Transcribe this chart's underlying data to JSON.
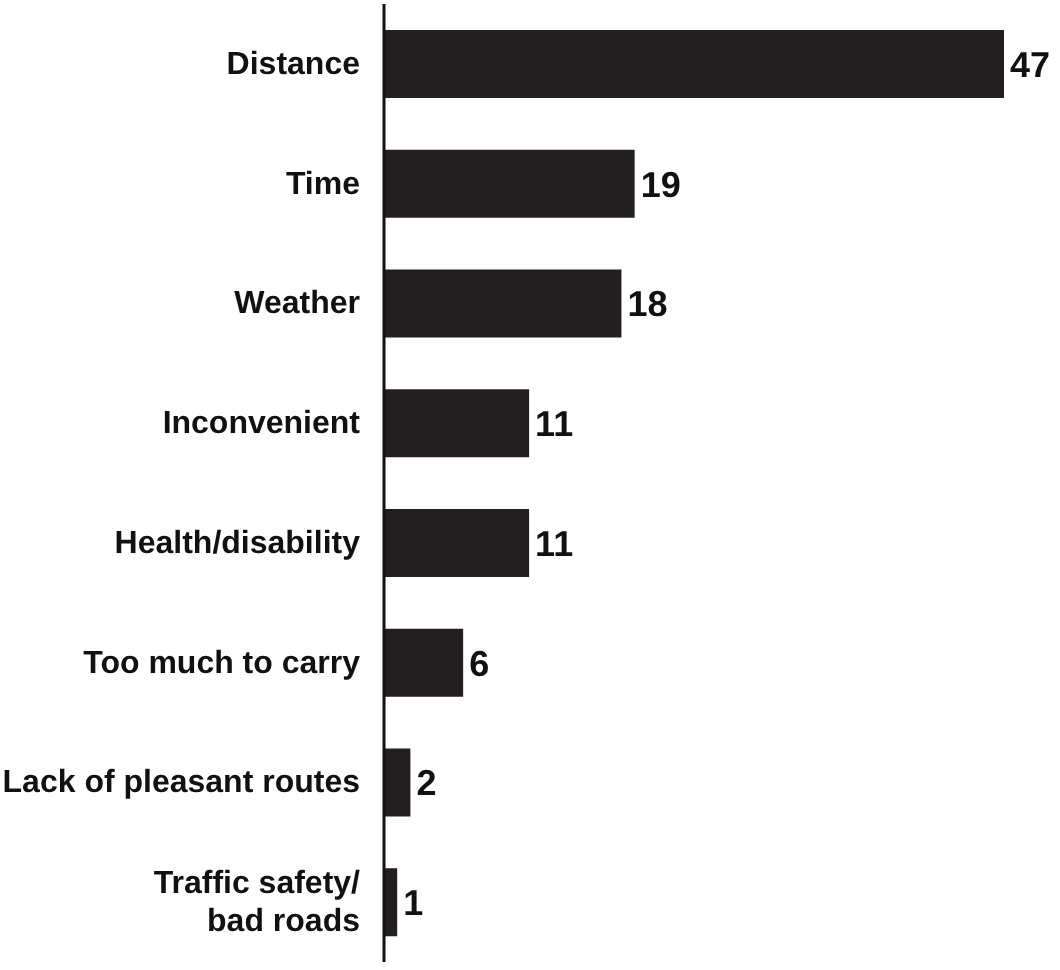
{
  "chart_data": {
    "type": "bar",
    "orientation": "horizontal",
    "data_labels": true,
    "grid": false,
    "legend": false,
    "categories": [
      "Distance",
      "Time",
      "Weather",
      "Inconvenient",
      "Health/disability",
      "Too much to carry",
      "Lack of pleasant routes",
      "Traffic safety/\nbad roads"
    ],
    "values": [
      47,
      19,
      18,
      11,
      11,
      6,
      2,
      1
    ],
    "color": "#231f20"
  }
}
